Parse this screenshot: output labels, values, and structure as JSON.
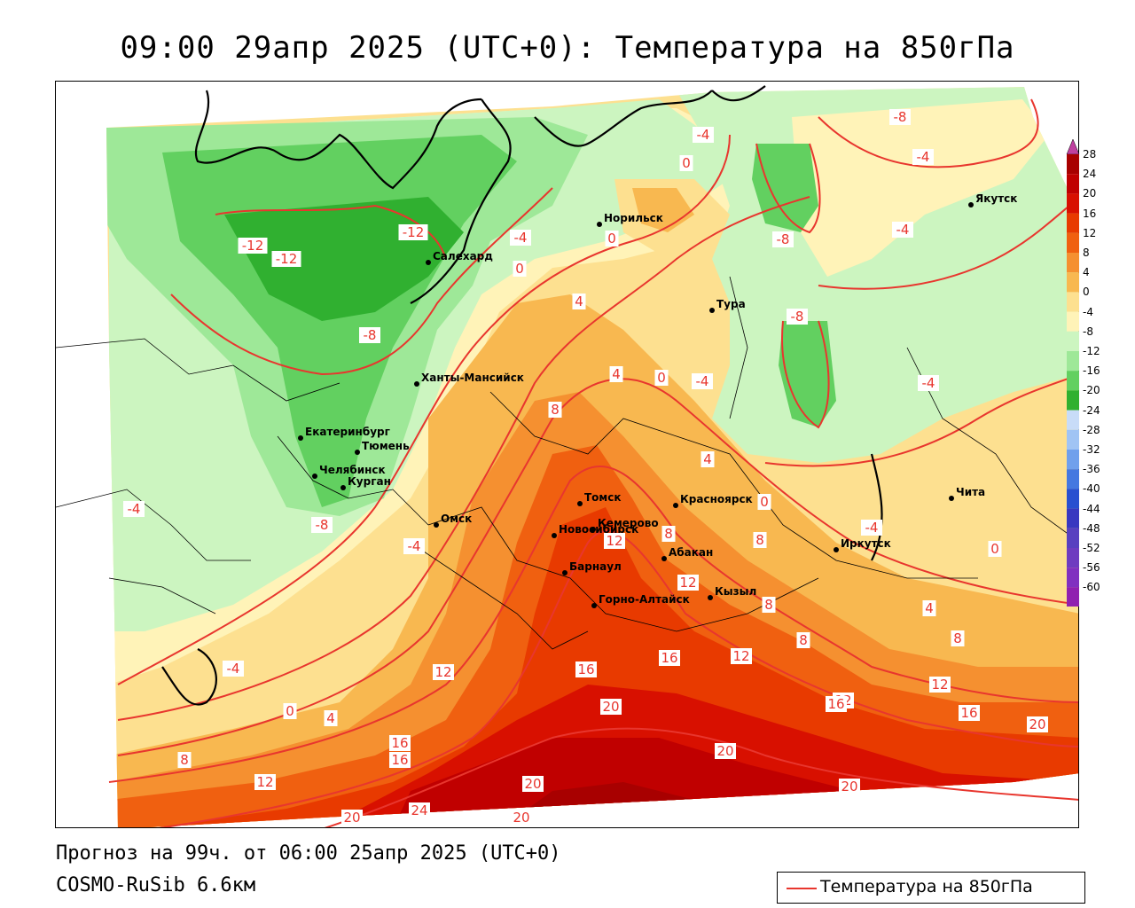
{
  "title": "09:00 29апр 2025 (UTC+0): Температура на 850гПа",
  "footer": {
    "forecast": "Прогноз на 99ч. от 06:00 25апр 2025 (UTC+0)",
    "model": "COSMO-RuSib 6.6км"
  },
  "legend": {
    "label": "Температура на 850гПа",
    "line_color": "#e8362e"
  },
  "colorbar": {
    "ticks": [
      "28",
      "24",
      "20",
      "16",
      "12",
      "8",
      "4",
      "0",
      "-4",
      "-8",
      "-12",
      "-16",
      "-20",
      "-24",
      "-28",
      "-32",
      "-36",
      "-40",
      "-44",
      "-48",
      "-52",
      "-56",
      "-60"
    ],
    "colors": [
      "#a80000",
      "#c00000",
      "#d81000",
      "#e83a00",
      "#f06010",
      "#f59030",
      "#f8b850",
      "#fde090",
      "#fff3b8",
      "#ccf5c0",
      "#9ee898",
      "#62d060",
      "#30b030",
      "#c8dcf8",
      "#a0c4f4",
      "#70a0ec",
      "#4478e0",
      "#2850d0",
      "#3838c0",
      "#5840c0",
      "#6e3cc0",
      "#8030c0",
      "#9020b0"
    ]
  },
  "cities": [
    {
      "name": "Норильск"
    },
    {
      "name": "Салехард"
    },
    {
      "name": "Тура"
    },
    {
      "name": "Якутск"
    },
    {
      "name": "Ханты-Мансийск"
    },
    {
      "name": "Екатеринбург"
    },
    {
      "name": "Тюмень"
    },
    {
      "name": "Челябинск"
    },
    {
      "name": "Курган"
    },
    {
      "name": "Омск"
    },
    {
      "name": "Новосибирск"
    },
    {
      "name": "Томск"
    },
    {
      "name": "Кемерово"
    },
    {
      "name": "Красноярск"
    },
    {
      "name": "Абакан"
    },
    {
      "name": "Барнаул"
    },
    {
      "name": "Горно-Алтайск"
    },
    {
      "name": "Кызыл"
    },
    {
      "name": "Иркутск"
    },
    {
      "name": "Чита"
    }
  ],
  "contour_labels": [
    {
      "text": "-12"
    },
    {
      "text": "-12"
    },
    {
      "text": "-12"
    },
    {
      "text": "-8"
    },
    {
      "text": "-8"
    },
    {
      "text": "-8"
    },
    {
      "text": "-8"
    },
    {
      "text": "-8"
    },
    {
      "text": "-4"
    },
    {
      "text": "-4"
    },
    {
      "text": "-4"
    },
    {
      "text": "-4"
    },
    {
      "text": "-4"
    },
    {
      "text": "-4"
    },
    {
      "text": "-4"
    },
    {
      "text": "-4"
    },
    {
      "text": "-4"
    },
    {
      "text": "-4"
    },
    {
      "text": "0"
    },
    {
      "text": "0"
    },
    {
      "text": "0"
    },
    {
      "text": "0"
    },
    {
      "text": "0"
    },
    {
      "text": "0"
    },
    {
      "text": "0"
    },
    {
      "text": "4"
    },
    {
      "text": "4"
    },
    {
      "text": "4"
    },
    {
      "text": "4"
    },
    {
      "text": "4"
    },
    {
      "text": "8"
    },
    {
      "text": "8"
    },
    {
      "text": "8"
    },
    {
      "text": "8"
    },
    {
      "text": "8"
    },
    {
      "text": "8"
    },
    {
      "text": "8"
    },
    {
      "text": "12"
    },
    {
      "text": "12"
    },
    {
      "text": "12"
    },
    {
      "text": "12"
    },
    {
      "text": "12"
    },
    {
      "text": "12"
    },
    {
      "text": "12"
    },
    {
      "text": "16"
    },
    {
      "text": "16"
    },
    {
      "text": "16"
    },
    {
      "text": "16"
    },
    {
      "text": "16"
    },
    {
      "text": "16"
    },
    {
      "text": "20"
    },
    {
      "text": "20"
    },
    {
      "text": "20"
    },
    {
      "text": "20"
    },
    {
      "text": "20"
    },
    {
      "text": "20"
    },
    {
      "text": "20"
    },
    {
      "text": "24"
    }
  ]
}
